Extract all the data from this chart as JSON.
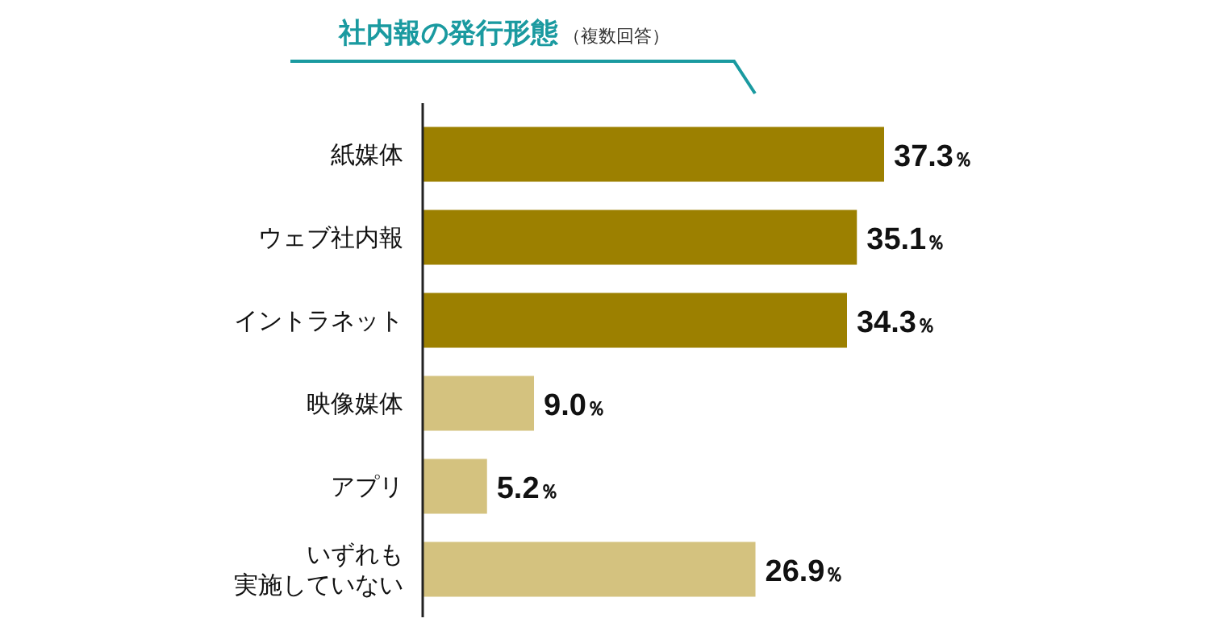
{
  "chart_data": {
    "type": "bar",
    "orientation": "horizontal",
    "title": "社内報の発行形態",
    "subtitle": "（複数回答）",
    "categories": [
      "紙媒体",
      "ウェブ社内報",
      "イントラネット",
      "映像媒体",
      "アプリ",
      "いずれも実施していない"
    ],
    "values": [
      37.3,
      35.1,
      34.3,
      9.0,
      5.2,
      26.9
    ],
    "colors": [
      "#9c8000",
      "#9c8000",
      "#9c8000",
      "#d4c27f",
      "#d4c27f",
      "#d4c27f"
    ],
    "value_labels": [
      "37.3％",
      "35.1％",
      "34.3％",
      "9.0％",
      "5.2％",
      "26.9％"
    ],
    "grid": false
  }
}
